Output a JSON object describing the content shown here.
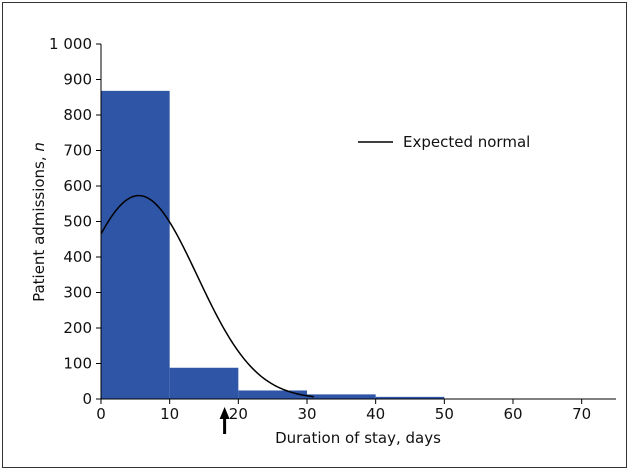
{
  "chart_data": {
    "type": "bar",
    "xlabel": "Duration of stay, days",
    "ylabel_main": "Patient admissions, ",
    "ylabel_italic": "n",
    "xlim": [
      0,
      75
    ],
    "ylim": [
      0,
      1000
    ],
    "x_ticks": [
      0,
      10,
      20,
      30,
      40,
      50,
      60,
      70
    ],
    "x_tick_labels": [
      "0",
      "10",
      "20",
      "30",
      "40",
      "50",
      "60",
      "70"
    ],
    "y_ticks": [
      0,
      100,
      200,
      300,
      400,
      500,
      600,
      700,
      800,
      900,
      1000
    ],
    "y_tick_labels": [
      "0",
      "100",
      "200",
      "300",
      "400",
      "500",
      "600",
      "700",
      "800",
      "900",
      "1 000"
    ],
    "bins": [
      {
        "x0": 0,
        "x1": 10,
        "value": 868
      },
      {
        "x0": 10,
        "x1": 20,
        "value": 88
      },
      {
        "x0": 20,
        "x1": 30,
        "value": 24
      },
      {
        "x0": 30,
        "x1": 40,
        "value": 13
      },
      {
        "x0": 40,
        "x1": 50,
        "value": 6
      },
      {
        "x0": 50,
        "x1": 60,
        "value": 1
      },
      {
        "x0": 60,
        "x1": 70,
        "value": 1
      },
      {
        "x0": 70,
        "x1": 75,
        "value": 1
      }
    ],
    "bar_color": "#2e55a6",
    "curve": {
      "name": "Expected normal",
      "mean": 5.5,
      "peak": 573,
      "x_start": 0,
      "x_end": 31,
      "y_at_start": 465
    },
    "legend": {
      "label": "Expected normal",
      "placement": "upper-right"
    },
    "arrow_x": 18
  }
}
